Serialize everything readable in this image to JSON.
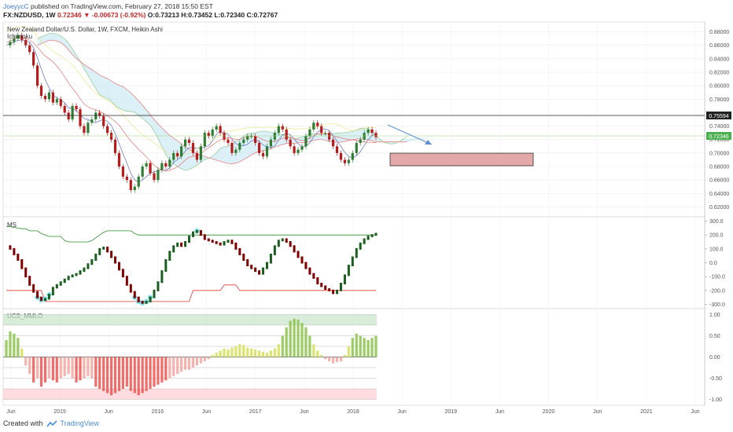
{
  "header": {
    "author": "JoeyycC",
    "published": "published on TradingView.com, February 27, 2018 15:50 EST",
    "symbol": "FX:NZDUSD, 1W",
    "last": "0.72346",
    "change": "▼ -0.00673 (-0.92%)",
    "O": "O:0.73213",
    "H": "H:0.73452",
    "L": "L:0.72340",
    "C": "C:0.72767"
  },
  "main_pane": {
    "title": "New Zealand Dollar/U.S. Dollar, 1W, FXCM, Heikin Ashi",
    "indicator": "Ichimoku",
    "price_ticks": [
      "0.88000",
      "0.86000",
      "0.84000",
      "0.82000",
      "0.80000",
      "0.78000",
      "0.74000",
      "0.72000",
      "0.70000",
      "0.68000",
      "0.66000",
      "0.64000",
      "0.62000"
    ],
    "hline_label": "0.75594",
    "last_label": "0.72346"
  },
  "ms_pane": {
    "title": "MS",
    "ticks": [
      "300.0",
      "200.0",
      "100.0",
      "0.0",
      "-100.0",
      "-200.0",
      "-300.0"
    ]
  },
  "ucs_pane": {
    "title": "UCS_MMLO",
    "ticks": [
      "1.00",
      "0.50",
      "0.00",
      "-0.50",
      "-1.00"
    ]
  },
  "time_axis": [
    "Jun",
    "2015",
    "Jun",
    "2016",
    "Jun",
    "2017",
    "Jun",
    "2018",
    "Jun",
    "2019",
    "Jun",
    "2020",
    "Jun",
    "2021",
    "Jun"
  ],
  "footer": {
    "created": "Created with",
    "brand": "TradingView"
  },
  "colors": {
    "up": "#2e7d32",
    "down": "#b71c1c",
    "cloud": "#bfe3f2",
    "box": "#e3a8a8",
    "arrow": "#5f8fd1",
    "hline": "#222222",
    "green_line": "#2e8b2e",
    "red_line": "#e53935"
  },
  "chart_data": {
    "type": "line",
    "series": [
      {
        "name": "NZDUSD",
        "x_start": "2014-05",
        "interval": "1W",
        "values": [
          0.86,
          0.865,
          0.87,
          0.875,
          0.868,
          0.86,
          0.85,
          0.83,
          0.8,
          0.785,
          0.78,
          0.79,
          0.775,
          0.78,
          0.77,
          0.76,
          0.75,
          0.77,
          0.765,
          0.74,
          0.73,
          0.745,
          0.75,
          0.76,
          0.755,
          0.74,
          0.73,
          0.72,
          0.7,
          0.68,
          0.665,
          0.66,
          0.645,
          0.65,
          0.665,
          0.68,
          0.685,
          0.67,
          0.66,
          0.675,
          0.685,
          0.68,
          0.69,
          0.7,
          0.695,
          0.71,
          0.72,
          0.715,
          0.7,
          0.69,
          0.71,
          0.73,
          0.725,
          0.735,
          0.74,
          0.73,
          0.72,
          0.715,
          0.7,
          0.705,
          0.715,
          0.72,
          0.725,
          0.725,
          0.715,
          0.7,
          0.695,
          0.71,
          0.72,
          0.73,
          0.74,
          0.735,
          0.72,
          0.71,
          0.7,
          0.705,
          0.71,
          0.725,
          0.735,
          0.745,
          0.74,
          0.73,
          0.73,
          0.72,
          0.71,
          0.7,
          0.69,
          0.685,
          0.69,
          0.7,
          0.715,
          0.72,
          0.73,
          0.735,
          0.73,
          0.7235
        ],
        "ms_values": [
          120,
          100,
          60,
          20,
          -40,
          -100,
          -160,
          -210,
          -250,
          -270,
          -260,
          -230,
          -180,
          -160,
          -140,
          -120,
          -100,
          -90,
          -80,
          -60,
          -40,
          -10,
          20,
          60,
          100,
          110,
          80,
          40,
          0,
          -50,
          -100,
          -160,
          -210,
          -250,
          -280,
          -290,
          -280,
          -250,
          -200,
          -140,
          -60,
          20,
          80,
          120,
          140,
          120,
          150,
          190,
          220,
          230,
          200,
          170,
          160,
          150,
          140,
          130,
          150,
          160,
          140,
          100,
          60,
          20,
          -20,
          -40,
          -60,
          -80,
          -40,
          0,
          60,
          120,
          160,
          170,
          150,
          120,
          80,
          40,
          0,
          -40,
          -80,
          -110,
          -150,
          -170,
          -190,
          -200,
          -220,
          -200,
          -150,
          -90,
          -20,
          40,
          100,
          140,
          170,
          190,
          200,
          210
        ],
        "ucs_values": [
          0.4,
          0.6,
          0.55,
          0.45,
          0.2,
          -0.2,
          -0.4,
          -0.6,
          -0.5,
          -0.7,
          -0.6,
          -0.5,
          -0.55,
          -0.6,
          -0.5,
          -0.45,
          -0.4,
          -0.5,
          -0.6,
          -0.55,
          -0.5,
          -0.45,
          -0.5,
          -0.7,
          -0.75,
          -0.8,
          -0.85,
          -0.9,
          -0.85,
          -0.8,
          -0.75,
          -0.7,
          -0.8,
          -0.85,
          -0.9,
          -0.85,
          -0.8,
          -0.75,
          -0.7,
          -0.65,
          -0.6,
          -0.55,
          -0.5,
          -0.45,
          -0.4,
          -0.35,
          -0.3,
          -0.3,
          -0.25,
          -0.2,
          -0.15,
          -0.1,
          -0.05,
          0.05,
          0.1,
          0.15,
          0.2,
          0.18,
          0.22,
          0.25,
          0.3,
          0.28,
          0.22,
          0.2,
          0.18,
          0.15,
          0.12,
          0.1,
          0.15,
          0.2,
          0.3,
          0.5,
          0.7,
          0.85,
          0.9,
          0.88,
          0.8,
          0.7,
          0.5,
          0.3,
          0.15,
          0.05,
          -0.05,
          -0.1,
          -0.15,
          -0.12,
          -0.1,
          0.05,
          0.25,
          0.45,
          0.55,
          0.5,
          0.45,
          0.4,
          0.45,
          0.5
        ]
      }
    ],
    "ylim": [
      0.61,
      0.89
    ],
    "ms_ylim": [
      -320,
      320
    ],
    "ucs_ylim": [
      -1.1,
      1.1
    ]
  }
}
